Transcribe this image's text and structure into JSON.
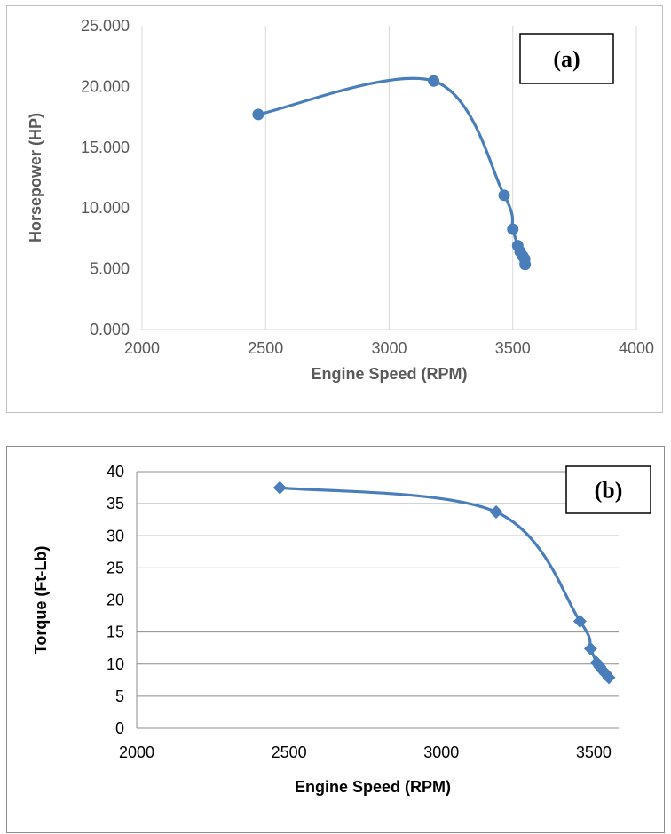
{
  "chart_data": [
    {
      "type": "scatter",
      "panel_tag": "(a)",
      "xlabel": "Engine Speed (RPM)",
      "ylabel": "Horsepower (HP)",
      "xlim": [
        2000,
        4000
      ],
      "ylim": [
        0,
        25
      ],
      "x_ticks": [
        "2000",
        "2500",
        "3000",
        "3500",
        "4000"
      ],
      "y_ticks": [
        "0.000",
        "5.000",
        "10.000",
        "15.000",
        "20.000",
        "25.000"
      ],
      "grid": "vertical",
      "marker": "circle",
      "line": "smooth",
      "color": "#4a7ebb",
      "series": [
        {
          "x": [
            2470,
            3180,
            3465,
            3500,
            3520,
            3530,
            3540,
            3548,
            3550
          ],
          "y": [
            17.7,
            20.45,
            11.05,
            8.25,
            6.9,
            6.4,
            6.05,
            5.8,
            5.35
          ]
        }
      ]
    },
    {
      "type": "scatter",
      "panel_tag": "(b)",
      "xlabel": "Engine Speed (RPM)",
      "ylabel": "Torque (Ft-Lb)",
      "xlim": [
        2000,
        3550
      ],
      "ylim": [
        0,
        40
      ],
      "x_ticks": [
        "2000",
        "2500",
        "3000",
        "3500"
      ],
      "y_ticks": [
        "0",
        "5",
        "10",
        "15",
        "20",
        "25",
        "30",
        "35",
        "40"
      ],
      "grid": "horizontal",
      "marker": "diamond",
      "line": "smooth",
      "color": "#4a7ebb",
      "series": [
        {
          "x": [
            2470,
            3180,
            3455,
            3490,
            3510,
            3520,
            3530,
            3540,
            3550
          ],
          "y": [
            37.5,
            33.7,
            16.7,
            12.4,
            10.2,
            9.6,
            9.0,
            8.5,
            7.9
          ]
        }
      ]
    }
  ]
}
